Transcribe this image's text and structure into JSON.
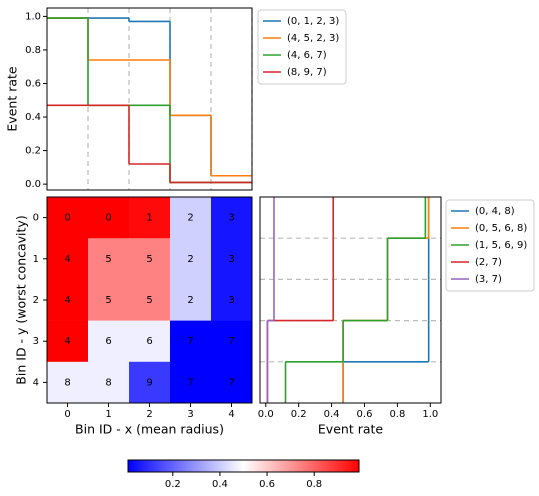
{
  "chart_data": [
    {
      "type": "step",
      "ylabel": "Event rate",
      "xlim": [
        -0.5,
        4.5
      ],
      "ylim": [
        -0.035,
        1.05
      ],
      "yticks": [
        {
          "value": 0,
          "label": "0.0"
        },
        0.2,
        0.4,
        0.6,
        0.8,
        {
          "value": 1,
          "label": "1.0"
        }
      ],
      "grid": true,
      "series": [
        {
          "name": "(0, 1, 2, 3)",
          "color": "#1f77b4",
          "values": [
            0.99,
            0.99,
            0.97,
            0.41,
            0.05
          ]
        },
        {
          "name": "(4, 5, 2, 3)",
          "color": "#ff7f0e",
          "values": [
            0.99,
            0.74,
            0.74,
            0.41,
            0.05
          ]
        },
        {
          "name": "(4, 6, 7)",
          "color": "#2ca02c",
          "values": [
            0.99,
            0.47,
            0.47,
            0.01,
            0.01
          ]
        },
        {
          "name": "(8, 9, 7)",
          "color": "#d62728",
          "values": [
            0.47,
            0.47,
            0.12,
            0.01,
            0.01
          ]
        }
      ]
    },
    {
      "type": "heatmap",
      "xlabel": "Bin ID - x (mean radius)",
      "ylabel": "Bin ID - y (worst concavity)",
      "xticks": [
        0,
        1,
        2,
        3,
        4
      ],
      "yticks": [
        0,
        1,
        2,
        3,
        4
      ],
      "cmap": "bwr",
      "clim": [
        0.01,
        0.99
      ],
      "values": [
        [
          0.99,
          0.99,
          0.97,
          0.41,
          0.05
        ],
        [
          0.99,
          0.74,
          0.74,
          0.41,
          0.05
        ],
        [
          0.99,
          0.74,
          0.74,
          0.41,
          0.05
        ],
        [
          0.99,
          0.47,
          0.47,
          0.01,
          0.01
        ],
        [
          0.47,
          0.47,
          0.12,
          0.01,
          0.01
        ]
      ],
      "cell_labels": [
        [
          0,
          0,
          1,
          2,
          3
        ],
        [
          4,
          5,
          5,
          2,
          3
        ],
        [
          4,
          5,
          5,
          2,
          3
        ],
        [
          4,
          6,
          6,
          7,
          7
        ],
        [
          8,
          8,
          9,
          7,
          7
        ]
      ],
      "colorbar": {
        "ticks": [
          0.2,
          0.4,
          0.6,
          0.8
        ]
      }
    },
    {
      "type": "step_h",
      "xlabel": "Event rate",
      "xlim": [
        -0.035,
        1.065
      ],
      "xticks": [
        {
          "value": 0,
          "label": "0.0"
        },
        0.2,
        0.4,
        0.6,
        0.8,
        {
          "value": 1,
          "label": "1.0"
        }
      ],
      "grid": true,
      "series": [
        {
          "name": "(0, 4, 8)",
          "color": "#1f77b4",
          "values": [
            0.99,
            0.99,
            0.99,
            0.99,
            0.47
          ]
        },
        {
          "name": "(0, 5, 6, 8)",
          "color": "#ff7f0e",
          "values": [
            0.99,
            0.74,
            0.74,
            0.47,
            0.47
          ]
        },
        {
          "name": "(1, 5, 6, 9)",
          "color": "#2ca02c",
          "values": [
            0.97,
            0.74,
            0.74,
            0.47,
            0.12
          ]
        },
        {
          "name": "(2, 7)",
          "color": "#d62728",
          "values": [
            0.41,
            0.41,
            0.41,
            0.01,
            0.01
          ]
        },
        {
          "name": "(3, 7)",
          "color": "#9467bd",
          "values": [
            0.05,
            0.05,
            0.05,
            0.01,
            0.01
          ]
        }
      ]
    }
  ]
}
